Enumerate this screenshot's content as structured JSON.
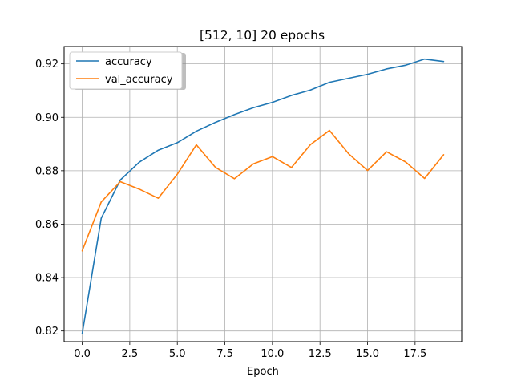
{
  "chart_data": {
    "type": "line",
    "title": "[512, 10] 20 epochs",
    "xlabel": "Epoch",
    "ylabel": "",
    "x": [
      0,
      1,
      2,
      3,
      4,
      5,
      6,
      7,
      8,
      9,
      10,
      11,
      12,
      13,
      14,
      15,
      16,
      17,
      18,
      19
    ],
    "xlim": [
      -0.95,
      19.95
    ],
    "ylim": [
      0.816,
      0.9265
    ],
    "xticks": [
      0,
      2.5,
      5,
      7.5,
      10,
      12.5,
      15,
      17.5
    ],
    "xtick_labels": [
      "0.0",
      "2.5",
      "5.0",
      "7.5",
      "10.0",
      "12.5",
      "15.0",
      "17.5"
    ],
    "yticks": [
      0.82,
      0.84,
      0.86,
      0.88,
      0.9,
      0.92
    ],
    "ytick_labels": [
      "0.82",
      "0.84",
      "0.86",
      "0.88",
      "0.90",
      "0.92"
    ],
    "grid": true,
    "legend_position": "top-left",
    "series": [
      {
        "name": "accuracy",
        "color": "#1f77b4",
        "values": [
          0.819,
          0.8622,
          0.8765,
          0.8832,
          0.8877,
          0.8905,
          0.8948,
          0.8981,
          0.901,
          0.9036,
          0.9056,
          0.9082,
          0.9102,
          0.9131,
          0.9146,
          0.9161,
          0.9181,
          0.9195,
          0.9218,
          0.9209
        ]
      },
      {
        "name": "val_accuracy",
        "color": "#ff7f0e",
        "values": [
          0.85,
          0.8683,
          0.8759,
          0.8731,
          0.8697,
          0.8787,
          0.8897,
          0.8813,
          0.877,
          0.8826,
          0.8853,
          0.8812,
          0.8898,
          0.8951,
          0.8864,
          0.8801,
          0.8871,
          0.8833,
          0.8771,
          0.886
        ]
      }
    ]
  }
}
